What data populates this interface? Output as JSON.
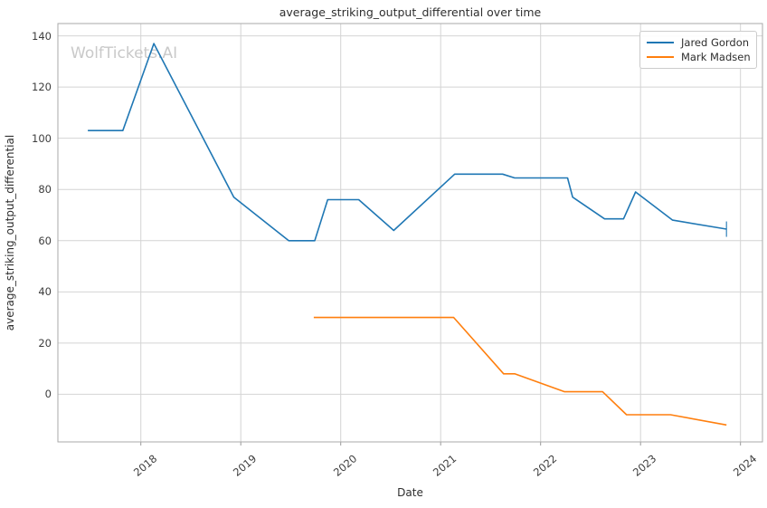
{
  "title": "average_striking_output_differential over time",
  "watermark": "WolfTickets.AI",
  "axes": {
    "xlabel": "Date",
    "ylabel": "average_striking_output_differential",
    "x_tick_labels": [
      "2018",
      "2019",
      "2020",
      "2021",
      "2022",
      "2023",
      "2024"
    ],
    "y_tick_labels": [
      "0",
      "20",
      "40",
      "60",
      "80",
      "100",
      "120",
      "140"
    ]
  },
  "colors": {
    "grid": "#d4d4d4",
    "spine": "#aaaaaa",
    "tick_mark": "#999999",
    "watermark": "#c9c9c9",
    "series_blue": "#1f77b4",
    "series_orange": "#ff7f0e"
  },
  "chart_data": {
    "type": "line",
    "title": "average_striking_output_differential over time",
    "xlabel": "Date",
    "ylabel": "average_striking_output_differential",
    "x_unit": "decimal_year",
    "x_ticks": [
      2018,
      2019,
      2020,
      2021,
      2022,
      2023,
      2024
    ],
    "y_ticks": [
      0,
      20,
      40,
      60,
      80,
      100,
      120,
      140
    ],
    "x_range": [
      2017.17,
      2024.22
    ],
    "y_range": [
      -18.6,
      144.8
    ],
    "grid": true,
    "x_tick_rotation": 40,
    "legend_position": "upper right",
    "series": [
      {
        "name": "Jared Gordon",
        "color": "#1f77b4",
        "end_marker": "vline",
        "points": [
          [
            2017.47,
            103
          ],
          [
            2017.82,
            103
          ],
          [
            2018.13,
            137
          ],
          [
            2018.93,
            77
          ],
          [
            2019.48,
            60
          ],
          [
            2019.74,
            60
          ],
          [
            2019.87,
            76
          ],
          [
            2020.18,
            76
          ],
          [
            2020.53,
            64
          ],
          [
            2021.14,
            86
          ],
          [
            2021.62,
            86
          ],
          [
            2021.74,
            84.5
          ],
          [
            2022.27,
            84.5
          ],
          [
            2022.32,
            77
          ],
          [
            2022.64,
            68.5
          ],
          [
            2022.83,
            68.5
          ],
          [
            2022.95,
            79
          ],
          [
            2023.32,
            68
          ],
          [
            2023.86,
            64.5
          ]
        ]
      },
      {
        "name": "Mark Madsen",
        "color": "#ff7f0e",
        "end_marker": null,
        "points": [
          [
            2019.73,
            30
          ],
          [
            2021.13,
            30
          ],
          [
            2021.63,
            8
          ],
          [
            2021.74,
            8
          ],
          [
            2022.24,
            1
          ],
          [
            2022.62,
            1
          ],
          [
            2022.86,
            -8
          ],
          [
            2023.3,
            -8
          ],
          [
            2023.86,
            -12
          ]
        ]
      }
    ]
  }
}
